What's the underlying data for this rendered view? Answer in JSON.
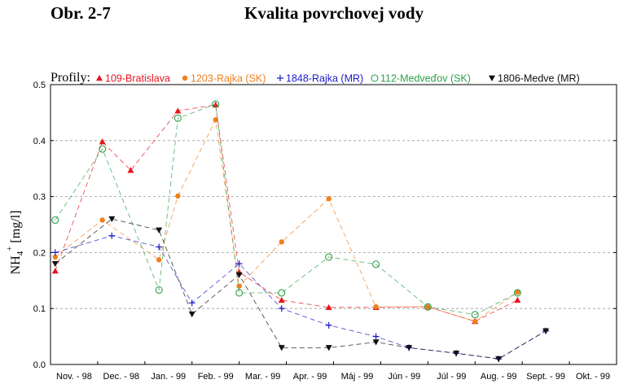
{
  "header": {
    "figure_label": "Obr. 2-7",
    "title": "Kvalita povrchovej vody"
  },
  "chart_data": {
    "type": "line",
    "legend_label": "Profily:",
    "ylabel_main": "NH",
    "ylabel_sub": "4",
    "ylabel_sup": "+",
    "ylabel_unit": " [mg/l]",
    "ylim": [
      0,
      0.5
    ],
    "yticks": [
      "0.0",
      "0.1",
      "0.2",
      "0.3",
      "0.4",
      "0.5"
    ],
    "grid": "horizontal dashed",
    "legend_position": "top",
    "categories": [
      "Nov. - 98",
      "Dec. - 98",
      "Jan. - 99",
      "Feb. - 99",
      "Mar. - 99",
      "Apr. - 99",
      "Máj - 99",
      "Jún - 99",
      "Júl - 99",
      "Aug. - 99",
      "Sept. - 99",
      "Okt. - 99"
    ],
    "series": [
      {
        "name": "109-Bratislava",
        "color": "#e8141c",
        "marker": "triangle-up",
        "points": [
          [
            0.1,
            0.167
          ],
          [
            1.1,
            0.398
          ],
          [
            1.7,
            0.347
          ],
          [
            2.7,
            0.453
          ],
          [
            3.5,
            0.464
          ],
          [
            4.0,
            0.165
          ],
          [
            4.9,
            0.115
          ],
          [
            5.9,
            0.102
          ],
          [
            6.9,
            0.102
          ],
          [
            8.0,
            0.103
          ],
          [
            9.0,
            0.077
          ],
          [
            9.9,
            0.115
          ]
        ]
      },
      {
        "name": "1203-Rajka (SK)",
        "color": "#f07f1c",
        "marker": "circle-filled",
        "points": [
          [
            0.1,
            0.192
          ],
          [
            1.1,
            0.258
          ],
          [
            2.3,
            0.187
          ],
          [
            2.7,
            0.301
          ],
          [
            3.5,
            0.437
          ],
          [
            4.0,
            0.14
          ],
          [
            4.9,
            0.219
          ],
          [
            5.9,
            0.296
          ],
          [
            6.9,
            0.103
          ],
          [
            8.0,
            0.103
          ],
          [
            9.0,
            0.077
          ],
          [
            9.9,
            0.129
          ]
        ]
      },
      {
        "name": "1848-Rajka (MR)",
        "color": "#1c1cc8",
        "marker": "plus",
        "points": [
          [
            0.1,
            0.2
          ],
          [
            1.3,
            0.23
          ],
          [
            2.3,
            0.21
          ],
          [
            3.0,
            0.11
          ],
          [
            4.0,
            0.18
          ],
          [
            4.9,
            0.1
          ],
          [
            5.9,
            0.07
          ],
          [
            6.9,
            0.05
          ],
          [
            7.6,
            0.03
          ],
          [
            8.6,
            0.02
          ],
          [
            9.5,
            0.01
          ],
          [
            10.5,
            0.06
          ]
        ]
      },
      {
        "name": "112-Medveďov (SK)",
        "color": "#2da04a",
        "marker": "circle-open",
        "points": [
          [
            0.1,
            0.258
          ],
          [
            1.1,
            0.385
          ],
          [
            2.3,
            0.133
          ],
          [
            2.7,
            0.44
          ],
          [
            3.5,
            0.465
          ],
          [
            4.0,
            0.128
          ],
          [
            4.9,
            0.128
          ],
          [
            5.9,
            0.192
          ],
          [
            6.9,
            0.179
          ],
          [
            8.0,
            0.103
          ],
          [
            9.0,
            0.089
          ],
          [
            9.9,
            0.128
          ]
        ]
      },
      {
        "name": "1806-Medve (MR)",
        "color": "#111111",
        "marker": "triangle-down",
        "points": [
          [
            0.1,
            0.18
          ],
          [
            1.3,
            0.26
          ],
          [
            2.3,
            0.24
          ],
          [
            3.0,
            0.09
          ],
          [
            4.0,
            0.16
          ],
          [
            4.9,
            0.03
          ],
          [
            5.9,
            0.03
          ],
          [
            6.9,
            0.04
          ],
          [
            7.6,
            0.03
          ],
          [
            8.6,
            0.02
          ],
          [
            9.5,
            0.01
          ],
          [
            10.5,
            0.06
          ]
        ]
      }
    ]
  }
}
